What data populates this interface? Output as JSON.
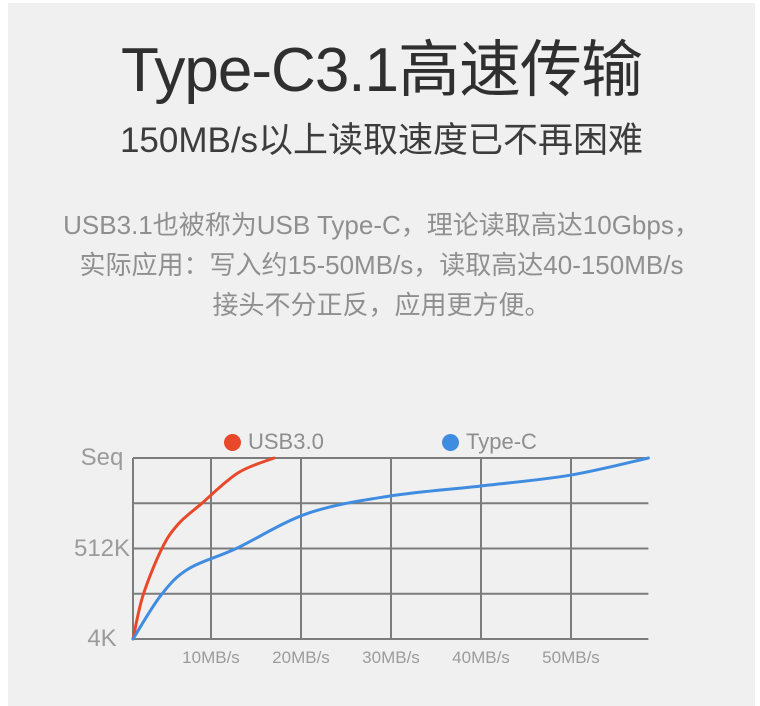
{
  "page": {
    "background": "#f0f0f0"
  },
  "header": {
    "title": "Type-C3.1高速传输",
    "subtitle": "150MB/s以上读取速度已不再困难"
  },
  "description": {
    "lines": [
      "USB3.1也被称为USB Type-C，理论读取高达10Gbps，",
      "实际应用：写入约15-50MB/s，读取高达40-150MB/s",
      "接头不分正反，应用更方便。"
    ]
  },
  "chart_data": {
    "type": "line",
    "title": "",
    "xlabel": "",
    "ylabel": "",
    "x_unit": "MB/s",
    "x_ticks": [
      10,
      20,
      30,
      40,
      50
    ],
    "x_tick_labels": [
      "10MB/s",
      "20MB/s",
      "30MB/s",
      "40MB/s",
      "50MB/s"
    ],
    "x_max": 58.6,
    "y_gridline_values": [
      0,
      1,
      2,
      3,
      4
    ],
    "y_tick_labels": [
      {
        "value": 0,
        "label": "4K"
      },
      {
        "value": 2,
        "label": "512K"
      },
      {
        "value": 4,
        "label": "Seq"
      }
    ],
    "grid_on": true,
    "grid_color": "#7c7c7c",
    "legend_position": "top",
    "series": [
      {
        "name": "USB3.0",
        "color": "#e7492a",
        "points": [
          [
            0,
            0
          ],
          [
            1.3,
            0.97
          ],
          [
            3.7,
            2.0
          ],
          [
            5.8,
            2.54
          ],
          [
            8.7,
            2.98
          ],
          [
            13.0,
            3.67
          ],
          [
            17.0,
            4.0
          ]
        ]
      },
      {
        "name": "Type-C",
        "color": "#3f8ce0",
        "points": [
          [
            0,
            0
          ],
          [
            3.6,
            0.97
          ],
          [
            7.1,
            1.55
          ],
          [
            12.8,
            2.0
          ],
          [
            20.8,
            2.78
          ],
          [
            29.9,
            3.16
          ],
          [
            39.9,
            3.38
          ],
          [
            49.9,
            3.62
          ],
          [
            58.6,
            4.0
          ]
        ]
      }
    ]
  }
}
